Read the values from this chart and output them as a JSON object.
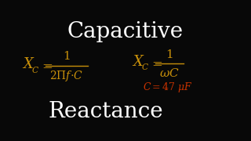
{
  "bg_color": "#080808",
  "title_color": "#ffffff",
  "formula_color": "#c8900a",
  "accent_color": "#cc3300",
  "title_top": "Capacitive",
  "title_bottom": "Reactance",
  "fig_width": 3.2,
  "fig_height": 1.8,
  "dpi": 100
}
